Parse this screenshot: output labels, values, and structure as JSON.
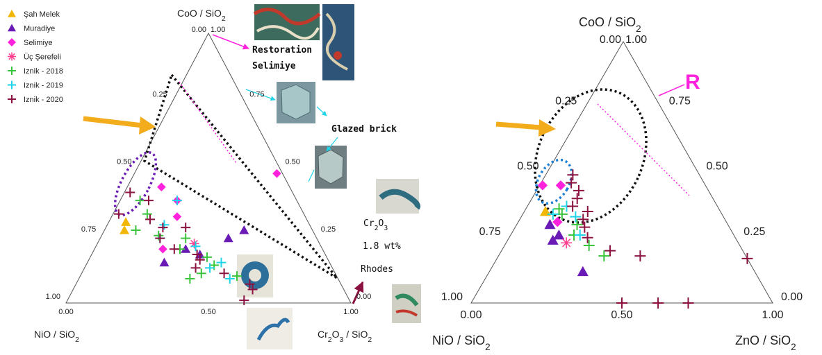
{
  "legend": [
    {
      "label": "Şah Melek",
      "marker": "triangle",
      "color": "#f2b705"
    },
    {
      "label": "Muradiye",
      "marker": "triangle",
      "color": "#6a1bb5"
    },
    {
      "label": "Selimiye",
      "marker": "diamond",
      "color": "#ff22dd"
    },
    {
      "label": "Üç Şerefeli",
      "marker": "asterisk",
      "color": "#ff3f8e"
    },
    {
      "label": "Iznik - 2018",
      "marker": "plus",
      "color": "#39c43c"
    },
    {
      "label": "Iznik - 2019",
      "marker": "plus",
      "color": "#1fd3e8"
    },
    {
      "label": "Iznik - 2020",
      "marker": "plus",
      "color": "#8b1240"
    }
  ],
  "annotations": {
    "restoration": "Restoration",
    "selimiye": "Selimiye",
    "glazed_brick": "Glazed brick",
    "cr2o3": "Cr2O3",
    "wt": "1.8 wt%",
    "rhodes": "Rhodes",
    "r_label": "R"
  },
  "chart_data": [
    {
      "type": "scatter",
      "subtype": "ternary",
      "axes": {
        "top": "CoO / SiO2",
        "left": "NiO / SiO2",
        "right": "Cr2O3 / SiO2"
      },
      "tick_labels": {
        "left_edge": [
          "0.25",
          "0.50",
          "0.75",
          "1.00"
        ],
        "right_edge": [
          "0.75",
          "0.50",
          "0.25",
          "0.00"
        ],
        "bottom": [
          "0.00",
          "0.50",
          "1.00"
        ],
        "apex": [
          "0.00",
          "1.00"
        ]
      },
      "series": [
        {
          "name": "Şah Melek",
          "points": [
            [
              0.3,
              0.64,
              0.06
            ],
            [
              0.27,
              0.66,
              0.07
            ]
          ]
        },
        {
          "name": "Muradiye",
          "points": [
            [
              0.27,
              0.24,
              0.49
            ],
            [
              0.24,
              0.31,
              0.45
            ],
            [
              0.18,
              0.44,
              0.38
            ],
            [
              0.2,
              0.48,
              0.32
            ],
            [
              0.15,
              0.58,
              0.27
            ]
          ]
        },
        {
          "name": "Selimiye",
          "points": [
            [
              0.48,
              0.02,
              0.5
            ],
            [
              0.38,
              0.42,
              0.2
            ],
            [
              0.32,
              0.45,
              0.23
            ],
            [
              0.2,
              0.56,
              0.24
            ],
            [
              0.43,
              0.45,
              0.12
            ]
          ]
        },
        {
          "name": "Üç Şerefeli",
          "points": [
            [
              0.22,
              0.44,
              0.34
            ]
          ]
        },
        {
          "name": "Iznik - 2018",
          "points": [
            [
              0.38,
              0.55,
              0.07
            ],
            [
              0.33,
              0.55,
              0.12
            ],
            [
              0.27,
              0.62,
              0.11
            ],
            [
              0.25,
              0.55,
              0.2
            ],
            [
              0.24,
              0.46,
              0.3
            ],
            [
              0.2,
              0.5,
              0.3
            ],
            [
              0.17,
              0.42,
              0.41
            ],
            [
              0.14,
              0.41,
              0.45
            ],
            [
              0.11,
              0.47,
              0.42
            ],
            [
              0.1,
              0.35,
              0.55
            ],
            [
              0.09,
              0.52,
              0.39
            ]
          ]
        },
        {
          "name": "Iznik - 2019",
          "points": [
            [
              0.38,
              0.42,
              0.2
            ],
            [
              0.29,
              0.51,
              0.2
            ],
            [
              0.24,
              0.55,
              0.21
            ],
            [
              0.21,
              0.44,
              0.35
            ],
            [
              0.15,
              0.38,
              0.47
            ],
            [
              0.13,
              0.43,
              0.44
            ],
            [
              0.09,
              0.38,
              0.53
            ]
          ]
        },
        {
          "name": "Iznik - 2020",
          "points": [
            [
              0.41,
              0.57,
              0.02
            ],
            [
              0.38,
              0.52,
              0.1
            ],
            [
              0.31,
              0.55,
              0.14
            ],
            [
              0.28,
              0.52,
              0.2
            ],
            [
              0.24,
              0.55,
              0.21
            ],
            [
              0.2,
              0.52,
              0.28
            ],
            [
              0.18,
              0.45,
              0.37
            ],
            [
              0.16,
              0.45,
              0.39
            ],
            [
              0.13,
              0.48,
              0.39
            ],
            [
              0.11,
              0.39,
              0.5
            ],
            [
              0.07,
              0.32,
              0.61
            ],
            [
              0.05,
              0.32,
              0.63
            ],
            [
              0.01,
              0.37,
              0.62
            ],
            [
              0.33,
              0.65,
              0.02
            ],
            [
              0.28,
              0.44,
              0.28
            ]
          ]
        }
      ]
    },
    {
      "type": "scatter",
      "subtype": "ternary",
      "axes": {
        "top": "CoO / SiO2",
        "left": "NiO / SiO2",
        "right": "ZnO / SiO2"
      },
      "tick_labels": {
        "left_edge": [
          "0.25",
          "0.50",
          "0.75",
          "1.00"
        ],
        "right_edge": [
          "0.75",
          "0.50",
          "0.25",
          "0.00"
        ],
        "bottom": [
          "0.00",
          "0.50",
          "1.00"
        ],
        "apex": [
          "0.00",
          "1.00"
        ]
      },
      "series": [
        {
          "name": "Şah Melek",
          "points": [
            [
              0.35,
              0.58,
              0.07
            ]
          ]
        },
        {
          "name": "Muradiye",
          "points": [
            [
              0.3,
              0.59,
              0.11
            ],
            [
              0.26,
              0.58,
              0.16
            ],
            [
              0.24,
              0.61,
              0.15
            ],
            [
              0.12,
              0.57,
              0.31
            ]
          ]
        },
        {
          "name": "Selimiye",
          "points": [
            [
              0.45,
              0.48,
              0.07
            ],
            [
              0.45,
              0.54,
              0.01
            ],
            [
              0.31,
              0.56,
              0.13
            ]
          ]
        },
        {
          "name": "Üç Şerefeli",
          "points": [
            [
              0.23,
              0.57,
              0.2
            ]
          ]
        },
        {
          "name": "Iznik - 2018",
          "points": [
            [
              0.36,
              0.53,
              0.11
            ],
            [
              0.34,
              0.53,
              0.13
            ],
            [
              0.3,
              0.5,
              0.2
            ],
            [
              0.26,
              0.53,
              0.21
            ],
            [
              0.22,
              0.5,
              0.28
            ],
            [
              0.18,
              0.47,
              0.35
            ]
          ]
        },
        {
          "name": "Iznik - 2019",
          "points": [
            [
              0.37,
              0.5,
              0.13
            ],
            [
              0.34,
              0.56,
              0.1
            ],
            [
              0.33,
              0.49,
              0.18
            ],
            [
              0.26,
              0.51,
              0.23
            ]
          ]
        },
        {
          "name": "Iznik - 2020",
          "points": [
            [
              0.49,
              0.42,
              0.09
            ],
            [
              0.46,
              0.44,
              0.1
            ],
            [
              0.43,
              0.43,
              0.14
            ],
            [
              0.4,
              0.45,
              0.15
            ],
            [
              0.37,
              0.48,
              0.15
            ],
            [
              0.35,
              0.44,
              0.21
            ],
            [
              0.32,
              0.47,
              0.21
            ],
            [
              0.29,
              0.48,
              0.23
            ],
            [
              0.25,
              0.49,
              0.26
            ],
            [
              0.2,
              0.44,
              0.36
            ],
            [
              0.18,
              0.35,
              0.47
            ],
            [
              0.0,
              0.5,
              0.5
            ],
            [
              0.0,
              0.38,
              0.62
            ],
            [
              0.0,
              0.28,
              0.72
            ],
            [
              0.17,
              0.0,
              0.83
            ]
          ]
        }
      ]
    }
  ]
}
